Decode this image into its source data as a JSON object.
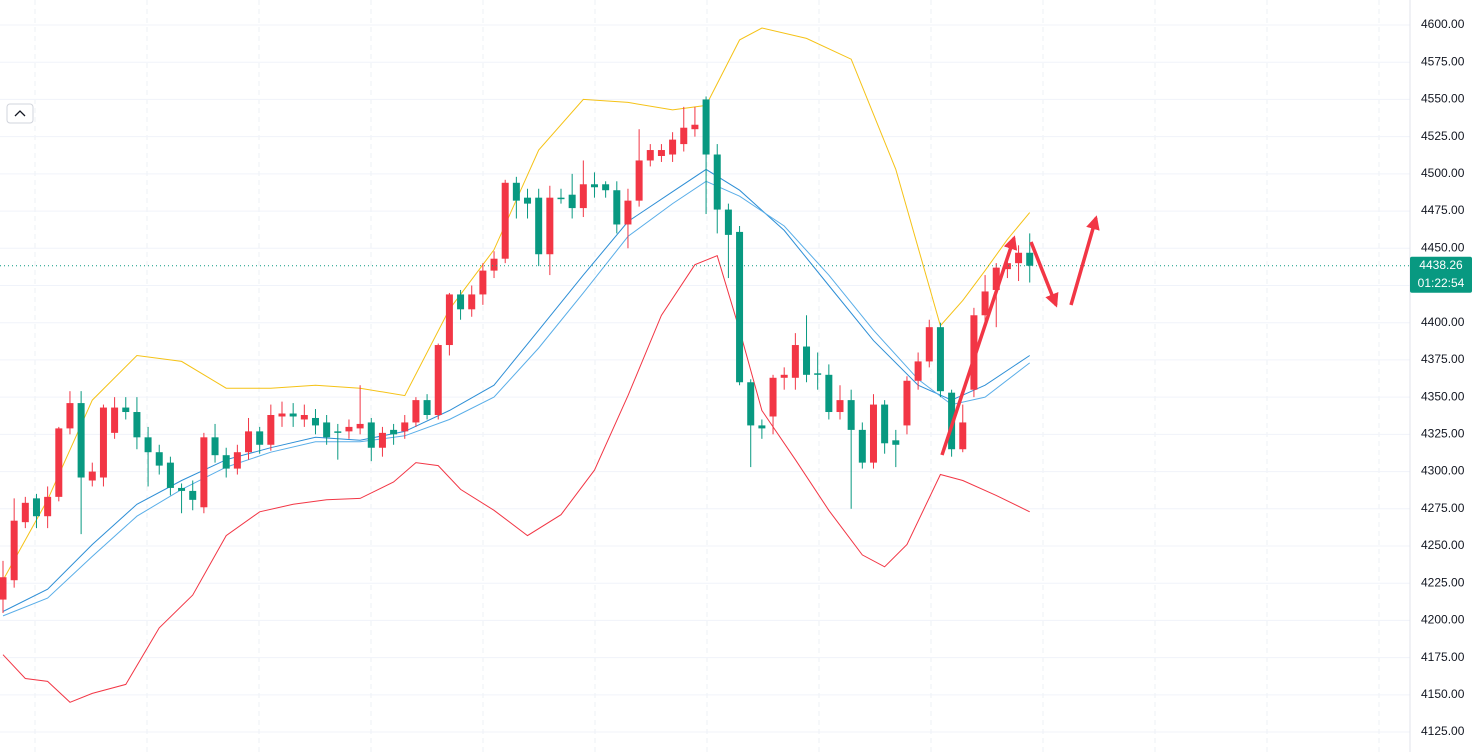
{
  "chart_data": {
    "type": "candlestick",
    "categories": [
      null,
      null,
      null,
      null,
      null,
      null,
      null,
      null,
      null,
      null,
      null,
      null,
      null,
      null,
      null,
      null,
      null,
      null,
      null,
      null,
      null,
      null,
      null,
      null,
      null,
      null,
      null,
      null,
      null,
      null,
      null,
      null,
      null,
      null,
      null,
      null,
      null,
      null,
      null,
      null,
      null,
      null,
      null,
      null,
      null,
      null,
      null,
      null,
      null,
      null,
      null,
      null,
      null,
      null,
      null,
      null,
      null,
      null,
      null,
      null,
      null,
      null,
      null,
      null,
      null,
      null,
      null,
      null,
      null,
      null,
      null,
      null,
      null,
      null,
      null,
      null,
      null,
      null,
      null,
      null,
      null,
      null,
      null,
      null,
      null,
      null,
      null,
      null,
      null,
      null,
      null,
      null,
      null
    ],
    "open": [
      4214,
      4227,
      4266,
      4282,
      4270,
      4283,
      4329,
      4346,
      4294,
      4296,
      4326,
      4343,
      4340,
      4323,
      4313,
      4306,
      4289,
      4287,
      4276,
      4323,
      4311,
      4302,
      4313,
      4327,
      4318,
      4337,
      4339,
      4335,
      4336,
      4333,
      4327,
      4327,
      4329,
      4333,
      4316,
      4328,
      4327,
      4333,
      4348,
      4338,
      4385,
      4419,
      4409,
      4419,
      4435,
      4443,
      4494,
      4484,
      4484,
      4446,
      4484,
      4486,
      4477,
      4493,
      4493,
      4489,
      4466,
      4482,
      4509,
      4512,
      4513,
      4520,
      4530,
      4550,
      4513,
      4476,
      4461,
      4360,
      4331,
      4337,
      4363,
      4363,
      4384,
      4366,
      4365,
      4340,
      4348,
      4328,
      4306,
      4345,
      4321,
      4331,
      4361,
      4374,
      4397,
      4353,
      4315,
      4355,
      4405,
      4422,
      4436,
      4440,
      4447
    ],
    "high": [
      4240,
      4282,
      4283,
      4285,
      4290,
      4330,
      4354,
      4354,
      4306,
      4345,
      4350,
      4350,
      4350,
      4330,
      4318,
      4310,
      4292,
      4294,
      4326,
      4332,
      4316,
      4318,
      4336,
      4330,
      4345,
      4347,
      4346,
      4345,
      4342,
      4338,
      4332,
      4335,
      4358,
      4336,
      4330,
      4332,
      4338,
      4350,
      4352,
      4386,
      4420,
      4422,
      4425,
      4440,
      4448,
      4496,
      4498,
      4490,
      4490,
      4492,
      4490,
      4500,
      4509,
      4501,
      4495,
      4495,
      4490,
      4530,
      4520,
      4520,
      4528,
      4545,
      4545,
      4552,
      4520,
      4480,
      4465,
      4362,
      4335,
      4365,
      4370,
      4393,
      4405,
      4380,
      4372,
      4358,
      4355,
      4333,
      4352,
      4348,
      4328,
      4364,
      4380,
      4402,
      4400,
      4355,
      4345,
      4410,
      4432,
      4440,
      4442,
      4452,
      4460
    ],
    "low": [
      4205,
      4222,
      4262,
      4262,
      4262,
      4280,
      4325,
      4258,
      4290,
      4290,
      4322,
      4335,
      4315,
      4290,
      4298,
      4284,
      4272,
      4274,
      4272,
      4306,
      4296,
      4298,
      4308,
      4312,
      4314,
      4330,
      4330,
      4330,
      4325,
      4318,
      4308,
      4322,
      4325,
      4307,
      4310,
      4318,
      4322,
      4330,
      4335,
      4335,
      4378,
      4402,
      4404,
      4412,
      4430,
      4440,
      4470,
      4470,
      4438,
      4432,
      4480,
      4470,
      4471,
      4484,
      4484,
      4460,
      4450,
      4478,
      4505,
      4508,
      4508,
      4515,
      4525,
      4473,
      4460,
      4430,
      4358,
      4303,
      4322,
      4325,
      4355,
      4355,
      4360,
      4355,
      4335,
      4335,
      4275,
      4302,
      4302,
      4312,
      4303,
      4325,
      4355,
      4370,
      4350,
      4310,
      4313,
      4350,
      4398,
      4397,
      4430,
      4428,
      4427
    ],
    "close": [
      4229,
      4267,
      4279,
      4270,
      4283,
      4329,
      4346,
      4296,
      4300,
      4343,
      4343,
      4340,
      4323,
      4313,
      4304,
      4289,
      4287,
      4281,
      4323,
      4311,
      4302,
      4313,
      4327,
      4318,
      4338,
      4339,
      4337,
      4338,
      4331,
      4323,
      4326,
      4330,
      4332,
      4316,
      4326,
      4325,
      4333,
      4348,
      4338,
      4385,
      4419,
      4409,
      4419,
      4435,
      4443,
      4494,
      4482,
      4480,
      4446,
      4484,
      4483,
      4477,
      4493,
      4491,
      4489,
      4466,
      4482,
      4509,
      4516,
      4516,
      4523,
      4531,
      4533,
      4513,
      4476,
      4459,
      4360,
      4331,
      4329,
      4363,
      4365,
      4385,
      4365,
      4365,
      4340,
      4348,
      4328,
      4306,
      4345,
      4319,
      4318,
      4361,
      4374,
      4397,
      4354,
      4315,
      4333,
      4405,
      4421,
      4437,
      4440,
      4447,
      4438.26
    ],
    "up_color": "#f23645",
    "down_color": "#089981",
    "overlays": [
      {
        "color": "#f5c216",
        "x": [
          0,
          4,
          8,
          12,
          16,
          20,
          24,
          28,
          32,
          36,
          40,
          44,
          48,
          52,
          56,
          60,
          63,
          66,
          68,
          72,
          76,
          80,
          84,
          86,
          88,
          90,
          92
        ],
        "values": [
          4227,
          4281,
          4348,
          4378,
          4374,
          4356,
          4356,
          4358,
          4356,
          4351,
          4409,
          4449,
          4516,
          4550,
          4548,
          4543,
          4546,
          4590,
          4598,
          4591,
          4577,
          4503,
          4398,
          4415,
          4435,
          4456,
          4474
        ]
      },
      {
        "color": "#f23645",
        "x": [
          0,
          2,
          4,
          6,
          8,
          11,
          14,
          17,
          20,
          23,
          26,
          29,
          32,
          35,
          37,
          39,
          41,
          44,
          47,
          50,
          53,
          56,
          59,
          62,
          64,
          66,
          68,
          71,
          74,
          77,
          79,
          81,
          84,
          86,
          89,
          92
        ],
        "values": [
          4177,
          4161,
          4159,
          4145,
          4151,
          4157,
          4195,
          4217,
          4257,
          4273,
          4278,
          4281,
          4282,
          4293,
          4306,
          4304,
          4288,
          4274,
          4257,
          4271,
          4301,
          4351,
          4405,
          4439,
          4445,
          4395,
          4341,
          4308,
          4274,
          4244,
          4236,
          4251,
          4298,
          4294,
          4284,
          4273
        ]
      },
      {
        "color": "#2e8fd6",
        "x": [
          0,
          4,
          8,
          12,
          16,
          20,
          24,
          28,
          32,
          36,
          40,
          44,
          48,
          52,
          56,
          60,
          63,
          66,
          70,
          74,
          78,
          82,
          85,
          88,
          92
        ],
        "values": [
          4206,
          4221,
          4251,
          4278,
          4294,
          4308,
          4316,
          4323,
          4321,
          4327,
          4341,
          4358,
          4395,
          4432,
          4468,
          4488,
          4503,
          4489,
          4462,
          4425,
          4388,
          4358,
          4348,
          4358,
          4378
        ]
      },
      {
        "color": "#5aaee8",
        "x": [
          0,
          4,
          8,
          12,
          16,
          20,
          24,
          28,
          32,
          36,
          40,
          44,
          48,
          52,
          56,
          60,
          63,
          66,
          70,
          74,
          78,
          82,
          85,
          88,
          92
        ],
        "values": [
          4203,
          4215,
          4243,
          4270,
          4288,
          4303,
          4313,
          4320,
          4320,
          4324,
          4335,
          4350,
          4383,
          4420,
          4458,
          4480,
          4495,
          4485,
          4465,
          4432,
          4395,
          4362,
          4345,
          4350,
          4373
        ]
      }
    ],
    "ylim": [
      4111.6,
      4616.8
    ],
    "yticks": [
      {
        "value": 4125,
        "label": "4125.00"
      },
      {
        "value": 4150,
        "label": "4150.00"
      },
      {
        "value": 4175,
        "label": "4175.00"
      },
      {
        "value": 4200,
        "label": "4200.00"
      },
      {
        "value": 4225,
        "label": "4225.00"
      },
      {
        "value": 4250,
        "label": "4250.00"
      },
      {
        "value": 4275,
        "label": "4275.00"
      },
      {
        "value": 4300,
        "label": "4300.00"
      },
      {
        "value": 4325,
        "label": "4325.00"
      },
      {
        "value": 4350,
        "label": "4350.00"
      },
      {
        "value": 4375,
        "label": "4375.00"
      },
      {
        "value": 4400,
        "label": "4400.00"
      },
      {
        "value": 4425,
        "label": "4425.00"
      },
      {
        "value": 4450,
        "label": "4450.00"
      },
      {
        "value": 4475,
        "label": "4475.00"
      },
      {
        "value": 4500,
        "label": "4500.00"
      },
      {
        "value": 4525,
        "label": "4525.00"
      },
      {
        "value": 4550,
        "label": "4550.00"
      },
      {
        "value": 4575,
        "label": "4575.00"
      },
      {
        "value": 4600,
        "label": "4600.00"
      }
    ],
    "grid": true,
    "last_price": {
      "value": 4438.26,
      "label": "4438.26"
    },
    "countdown": "01:22:54",
    "price_color": "#089981"
  }
}
